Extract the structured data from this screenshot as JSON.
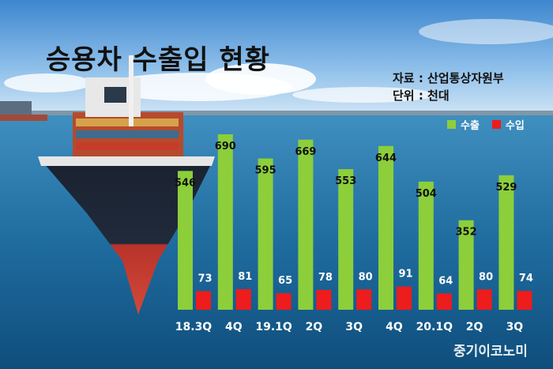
{
  "title": "승용차 수출입 현황",
  "source": {
    "line1": "자료 : 산업통상자원부",
    "line2": "단위 : 천대"
  },
  "legend": {
    "export_label": "수출",
    "import_label": "수입"
  },
  "brand": "중기이코노미",
  "colors": {
    "export": "#8ccf3a",
    "import": "#ee1c1c"
  },
  "chart_data": {
    "type": "bar",
    "title": "승용차 수출입 현황",
    "categories": [
      "18.3Q",
      "4Q",
      "19.1Q",
      "2Q",
      "3Q",
      "4Q",
      "20.1Q",
      "2Q",
      "3Q"
    ],
    "series": [
      {
        "name": "수출",
        "values": [
          546,
          690,
          595,
          669,
          553,
          644,
          504,
          352,
          529
        ]
      },
      {
        "name": "수입",
        "values": [
          73,
          81,
          65,
          78,
          80,
          91,
          64,
          80,
          74
        ]
      }
    ],
    "unit": "천대",
    "legend_position": "top-right",
    "grid": false
  }
}
